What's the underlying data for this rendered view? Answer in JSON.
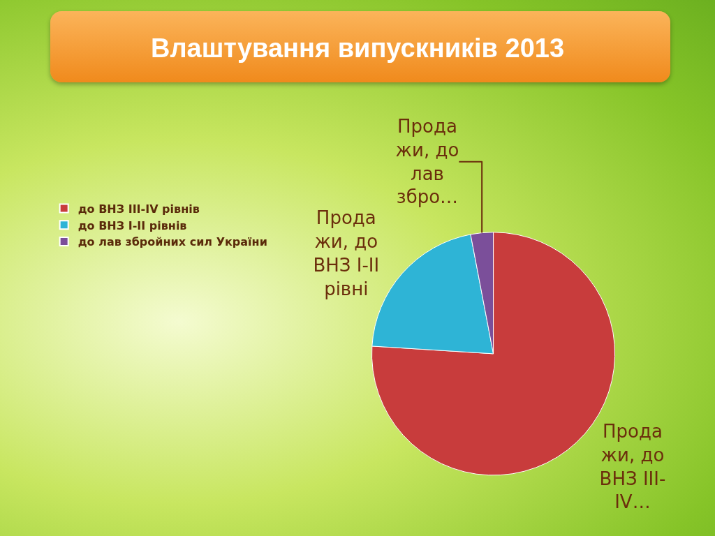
{
  "chart_data": {
    "type": "pie",
    "title": "Влаштування випускників 2013",
    "categories": [
      "до ВНЗ III-IV рівнів",
      "до ВНЗ І-ІІ рівнів",
      "до лав збройних сил України"
    ],
    "values": [
      76,
      21,
      3
    ],
    "colors": [
      "#c83c3c",
      "#2eb4d6",
      "#7b4f9a"
    ],
    "value_labels": [
      "Прода\nжи, до\nВНЗ III-\nIV…",
      "Прода\nжи, до\nВНЗ I-II\nрівні",
      "Прода\nжи, до\nлав\nзбро…"
    ],
    "legend": "left"
  }
}
